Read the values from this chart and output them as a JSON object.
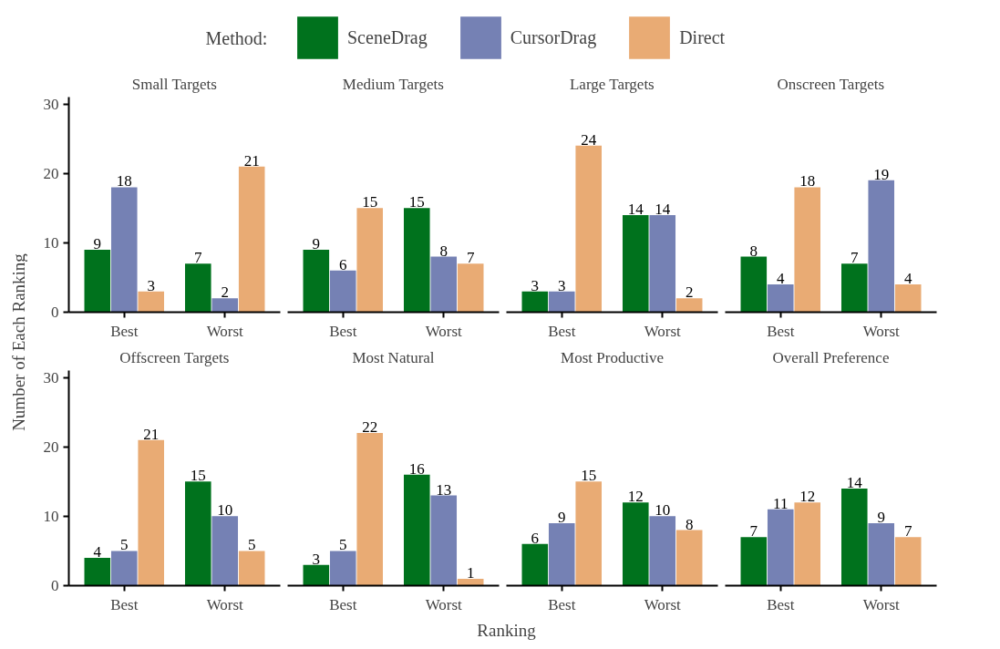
{
  "chart_data": [
    {
      "type": "bar",
      "title": "Small Targets",
      "categories": [
        "Best",
        "Worst"
      ],
      "ylim": [
        0,
        31
      ],
      "yticks": [
        0,
        10,
        20,
        30
      ],
      "data_labels": true,
      "legend": "top",
      "legend_title": "Method:",
      "ylabel": "Number of Each Ranking",
      "series": [
        {
          "name": "SceneDrag",
          "color": "#00721d",
          "values": [
            9,
            7
          ]
        },
        {
          "name": "CursorDrag",
          "color": "#7581b4",
          "values": [
            18,
            2
          ]
        },
        {
          "name": "Direct",
          "color": "#e9ab74",
          "values": [
            3,
            21
          ]
        }
      ]
    },
    {
      "type": "bar",
      "title": "Medium Targets",
      "categories": [
        "Best",
        "Worst"
      ],
      "data_labels": true,
      "tick_labels": "x",
      "series": [
        {
          "color": "#00721d",
          "values": [
            9,
            15
          ]
        },
        {
          "color": "#7581b4",
          "values": [
            6,
            8
          ]
        },
        {
          "color": "#e9ab74",
          "values": [
            15,
            7
          ]
        }
      ]
    },
    {
      "type": "bar",
      "title": "Large Targets",
      "categories": [
        "Best",
        "Worst"
      ],
      "data_labels": true,
      "tick_labels": "x",
      "series": [
        {
          "color": "#00721d",
          "values": [
            3,
            14
          ]
        },
        {
          "color": "#7581b4",
          "values": [
            3,
            14
          ]
        },
        {
          "color": "#e9ab74",
          "values": [
            24,
            2
          ]
        }
      ]
    },
    {
      "type": "bar",
      "title": "Onscreen Targets",
      "categories": [
        "Best",
        "Worst"
      ],
      "data_labels": true,
      "tick_labels": "x",
      "series": [
        {
          "color": "#00721d",
          "values": [
            8,
            7
          ]
        },
        {
          "color": "#7581b4",
          "values": [
            4,
            19
          ]
        },
        {
          "color": "#e9ab74",
          "values": [
            18,
            4
          ]
        }
      ]
    },
    {
      "type": "bar",
      "title": "Offscreen Targets",
      "categories": [
        "Best",
        "Worst"
      ],
      "ylim": [
        0,
        31
      ],
      "yticks": [
        0,
        10,
        20,
        30
      ],
      "data_labels": true,
      "series": [
        {
          "color": "#00721d",
          "values": [
            4,
            15
          ]
        },
        {
          "color": "#7581b4",
          "values": [
            5,
            10
          ]
        },
        {
          "color": "#e9ab74",
          "values": [
            21,
            5
          ]
        }
      ]
    },
    {
      "type": "bar",
      "title": "Most Natural",
      "categories": [
        "Best",
        "Worst"
      ],
      "data_labels": true,
      "tick_labels": "x",
      "xlabel": "Ranking",
      "series": [
        {
          "color": "#00721d",
          "values": [
            3,
            16
          ]
        },
        {
          "color": "#7581b4",
          "values": [
            5,
            13
          ]
        },
        {
          "color": "#e9ab74",
          "values": [
            22,
            1
          ]
        }
      ]
    },
    {
      "type": "bar",
      "title": "Most Productive",
      "categories": [
        "Best",
        "Worst"
      ],
      "data_labels": true,
      "tick_labels": "x",
      "series": [
        {
          "color": "#00721d",
          "values": [
            6,
            12
          ]
        },
        {
          "color": "#7581b4",
          "values": [
            9,
            10
          ]
        },
        {
          "color": "#e9ab74",
          "values": [
            15,
            8
          ]
        }
      ]
    },
    {
      "type": "bar",
      "title": "Overall Preference",
      "categories": [
        "Best",
        "Worst"
      ],
      "data_labels": true,
      "tick_labels": "x",
      "series": [
        {
          "color": "#00721d",
          "values": [
            7,
            14
          ]
        },
        {
          "color": "#7581b4",
          "values": [
            11,
            9
          ]
        },
        {
          "color": "#e9ab74",
          "values": [
            12,
            7
          ]
        }
      ]
    }
  ]
}
